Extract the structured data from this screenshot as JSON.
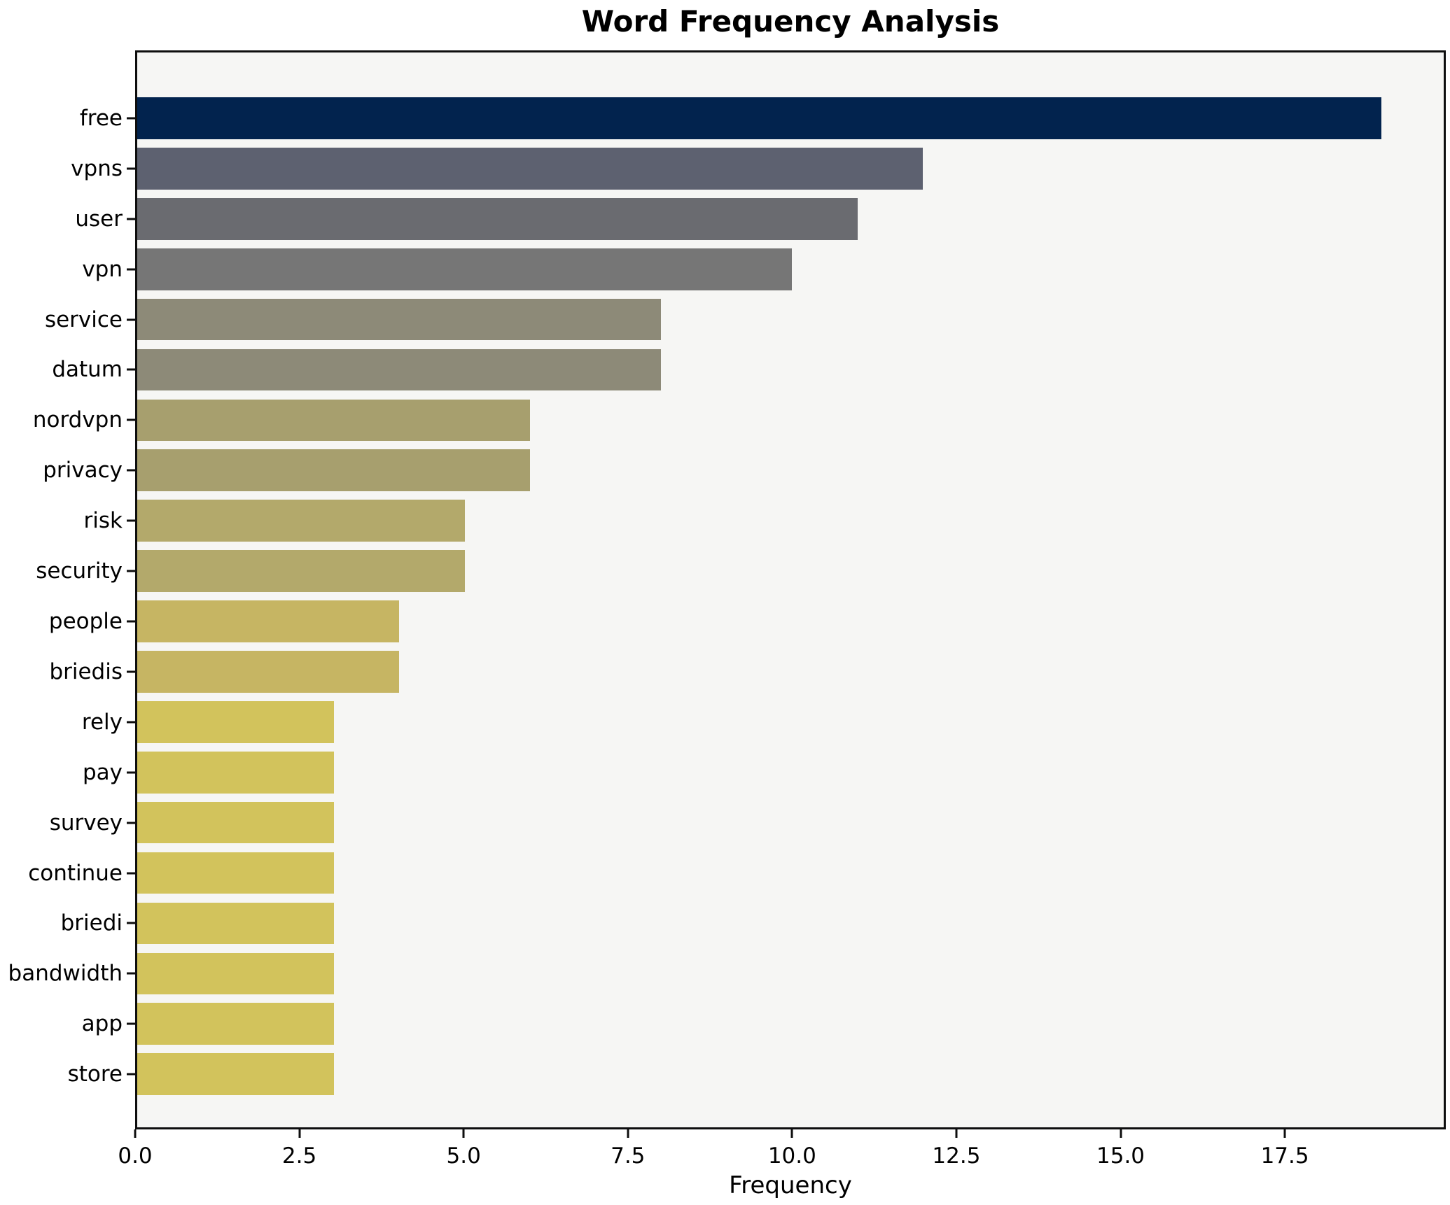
{
  "chart_data": {
    "type": "bar",
    "orientation": "horizontal",
    "title": "Word Frequency Analysis",
    "xlabel": "Frequency",
    "ylabel": "",
    "categories": [
      "free",
      "vpns",
      "user",
      "vpn",
      "service",
      "datum",
      "nordvpn",
      "privacy",
      "risk",
      "security",
      "people",
      "briedis",
      "rely",
      "pay",
      "survey",
      "continue",
      "briedi",
      "bandwidth",
      "app",
      "store"
    ],
    "values": [
      19,
      12,
      11,
      10,
      8,
      8,
      6,
      6,
      5,
      5,
      4,
      4,
      3,
      3,
      3,
      3,
      3,
      3,
      3,
      3
    ],
    "bar_colors": [
      "#02234E",
      "#5D6170",
      "#6A6B70",
      "#767676",
      "#8D8A78",
      "#8D8A78",
      "#A79F6E",
      "#A79F6E",
      "#B3A96B",
      "#B3A96B",
      "#C6B563",
      "#C6B563",
      "#D2C35C",
      "#D2C35C",
      "#D2C35C",
      "#D2C35C",
      "#D2C35C",
      "#D2C35C",
      "#D2C35C",
      "#D2C35C"
    ],
    "x_ticks": [
      {
        "value": 0,
        "label": "0.0"
      },
      {
        "value": 2.5,
        "label": "2.5"
      },
      {
        "value": 5,
        "label": "5.0"
      },
      {
        "value": 7.5,
        "label": "7.5"
      },
      {
        "value": 10,
        "label": "10.0"
      },
      {
        "value": 12.5,
        "label": "12.5"
      },
      {
        "value": 15,
        "label": "15.0"
      },
      {
        "value": 17.5,
        "label": "17.5"
      }
    ],
    "xlim": [
      0,
      19.95
    ],
    "grid": false,
    "legend": null,
    "bar_width_fraction": 0.8,
    "colors": {
      "plot_bg": "#F6F6F4",
      "figure_bg": "#FFFFFF",
      "axis": "#0E0E0E",
      "text": "#000000"
    }
  }
}
